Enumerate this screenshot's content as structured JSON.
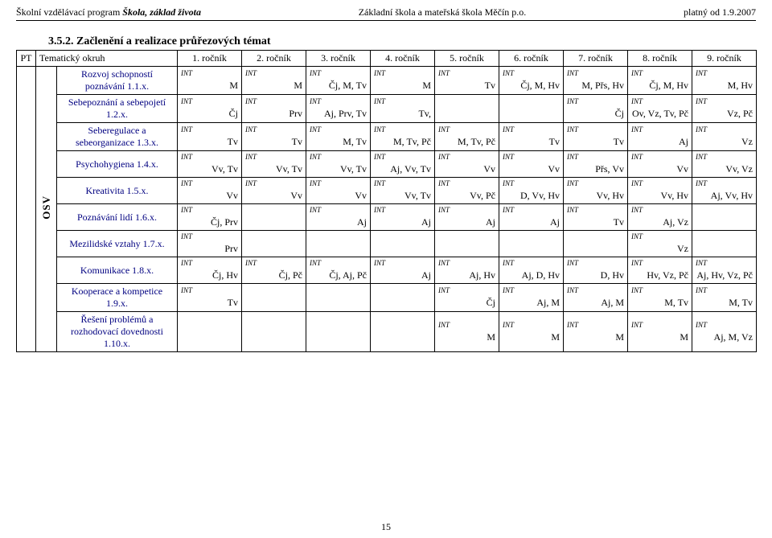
{
  "header": {
    "left_prefix": "Školní vzdělávací program ",
    "left_title": "Škola, základ života",
    "center": "Základní škola a mateřská škola Měčín p.o.",
    "right": "platný od 1.9.2007"
  },
  "section_heading": "3.5.2.  Začlenění a realizace průřezových témat",
  "columns": {
    "pt": "PT",
    "topic": "Tematický okruh",
    "years": [
      "1. ročník",
      "2. ročník",
      "3. ročník",
      "4. ročník",
      "5. ročník",
      "6. ročník",
      "7. ročník",
      "8. ročník",
      "9. ročník"
    ]
  },
  "osv_label": "OSV",
  "int_tag": "INT",
  "rows": [
    {
      "label": "Rozvoj schopností poznávání 1.1.x.",
      "cells": [
        "M",
        "M",
        "Čj, M, Tv",
        "M",
        "Tv",
        "Čj, M, Hv",
        "M, Přs, Hv",
        "Čj, M, Hv",
        "M, Hv"
      ]
    },
    {
      "label": "Sebepoznání a sebepojetí 1.2.x.",
      "cells": [
        "Čj",
        "Prv",
        "Aj, Prv, Tv",
        "Tv,",
        "",
        "",
        "Čj",
        "Ov, Vz, Tv, Pč",
        "Vz, Pč"
      ]
    },
    {
      "label": "Seberegulace a sebeorganizace 1.3.x.",
      "cells": [
        "Tv",
        "Tv",
        "M, Tv",
        "M, Tv, Pč",
        "M, Tv, Pč",
        "Tv",
        "Tv",
        "Aj",
        "Vz"
      ]
    },
    {
      "label": "Psychohygiena 1.4.x.",
      "cells": [
        "Vv, Tv",
        "Vv, Tv",
        "Vv, Tv",
        "Aj, Vv, Tv",
        "Vv",
        "Vv",
        "Přs, Vv",
        "Vv",
        "Vv, Vz"
      ]
    },
    {
      "label": "Kreativita 1.5.x.",
      "cells": [
        "Vv",
        "Vv",
        "Vv",
        "Vv, Tv",
        "Vv, Pč",
        "D, Vv, Hv",
        "Vv, Hv",
        "Vv, Hv",
        "Aj, Vv, Hv"
      ]
    },
    {
      "label": "Poznávání lidí 1.6.x.",
      "cells": [
        "Čj, Prv",
        "",
        "Aj",
        "Aj",
        "Aj",
        "Aj",
        "Tv",
        "Aj, Vz",
        ""
      ]
    },
    {
      "label": "Mezilidské vztahy 1.7.x.",
      "cells": [
        "Prv",
        "",
        "",
        "",
        "",
        "",
        "",
        "Vz",
        ""
      ]
    },
    {
      "label": "Komunikace 1.8.x.",
      "cells": [
        "Čj, Hv",
        "Čj, Pč",
        "Čj, Aj, Pč",
        "Aj",
        "Aj, Hv",
        "Aj, D, Hv",
        "D, Hv",
        "Hv, Vz, Pč",
        "Aj, Hv, Vz, Pč"
      ]
    },
    {
      "label": "Kooperace a kompetice 1.9.x.",
      "cells": [
        "Tv",
        "",
        "",
        "",
        "Čj",
        "Aj, M",
        "Aj, M",
        "M, Tv",
        "M, Tv"
      ]
    },
    {
      "label": "Řešení problémů a rozhodovací dovednosti 1.10.x.",
      "cells": [
        "",
        "",
        "",
        "",
        "M",
        "M",
        "M",
        "M",
        "Aj, M, Vz"
      ]
    }
  ],
  "page_number": "15"
}
